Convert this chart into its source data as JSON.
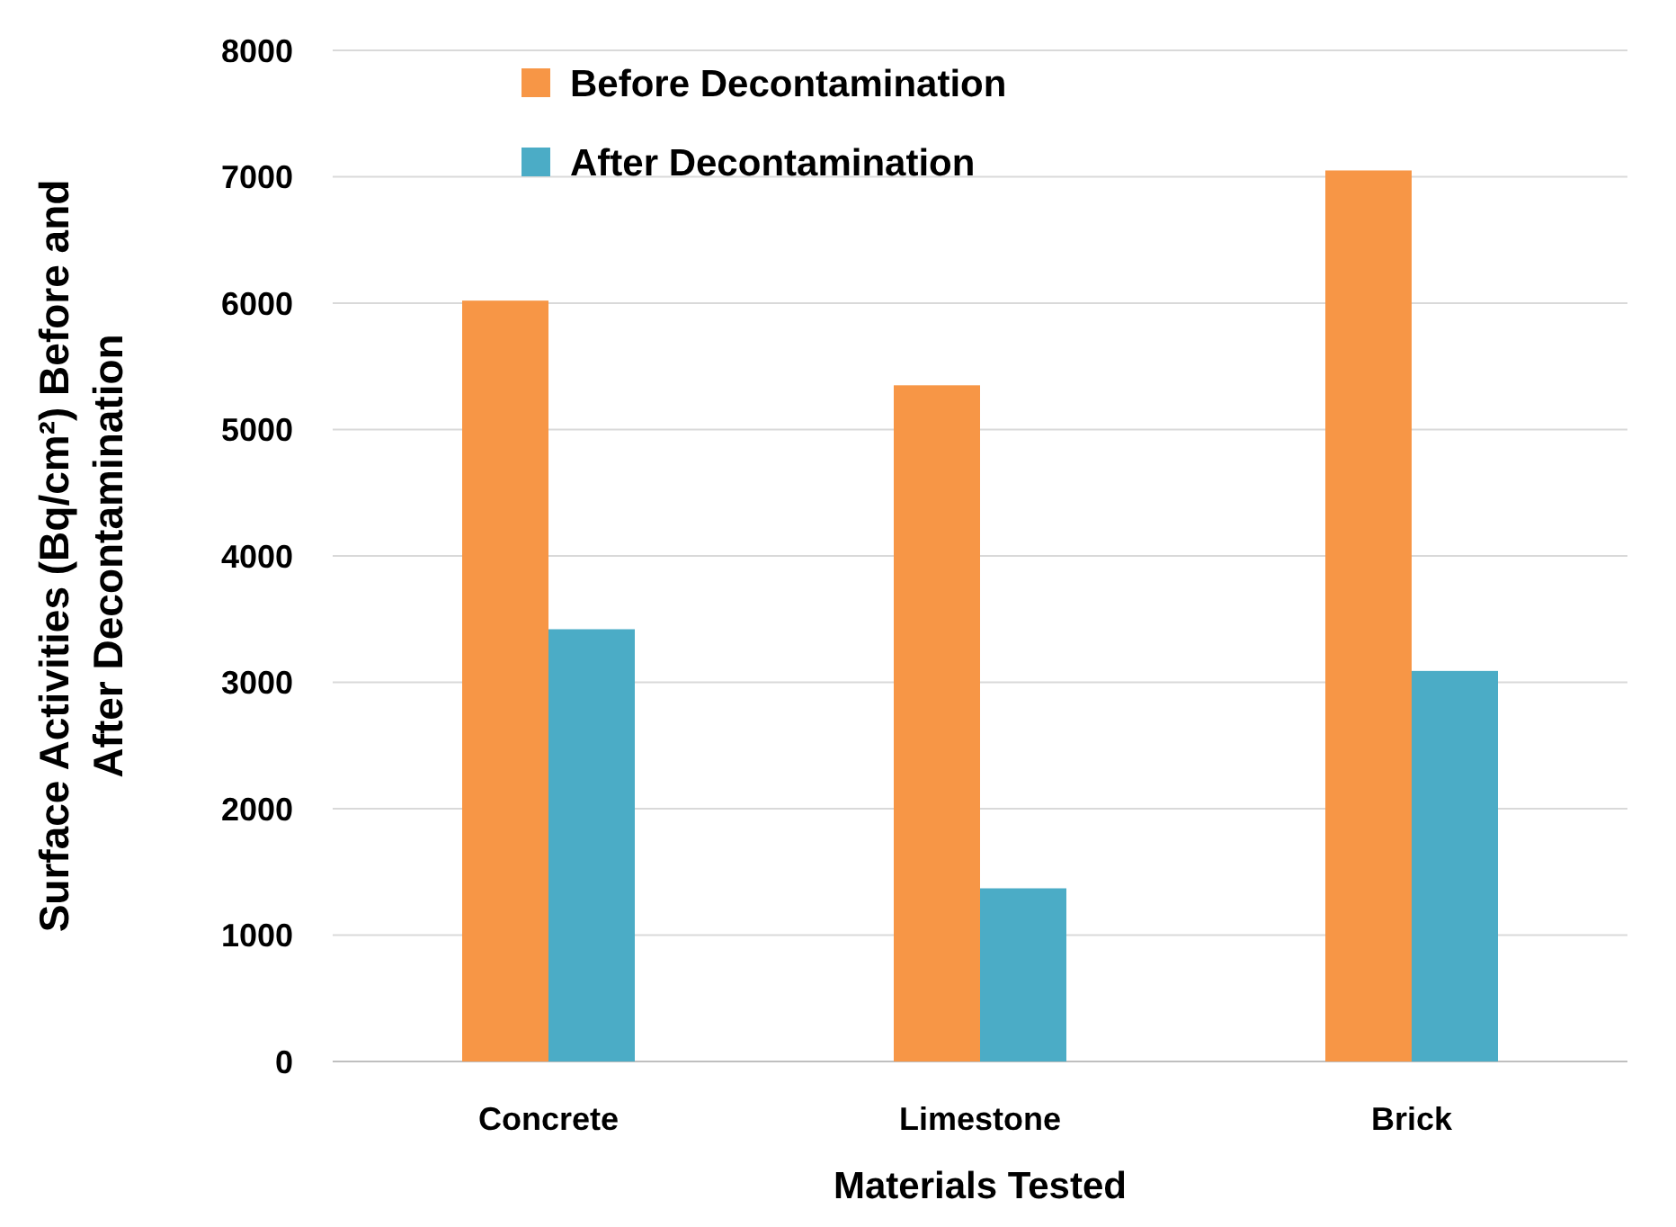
{
  "chart_data": {
    "type": "bar",
    "xlabel": "Materials Tested",
    "ylabel": "Surface Activities (Bq/cm²) Before and After Decontamination",
    "categories": [
      "Concrete",
      "Limestone",
      "Brick"
    ],
    "series": [
      {
        "name": "Before Decontamination",
        "color": "#f79646",
        "values": [
          6020,
          5350,
          7050
        ]
      },
      {
        "name": "After Decontamination",
        "color": "#4bacc6",
        "values": [
          3420,
          1370,
          3090
        ]
      }
    ],
    "ylim": [
      0,
      8000
    ],
    "yticks": [
      0,
      1000,
      2000,
      3000,
      4000,
      5000,
      6000,
      7000,
      8000
    ],
    "grid": "y",
    "legend": "top left"
  }
}
